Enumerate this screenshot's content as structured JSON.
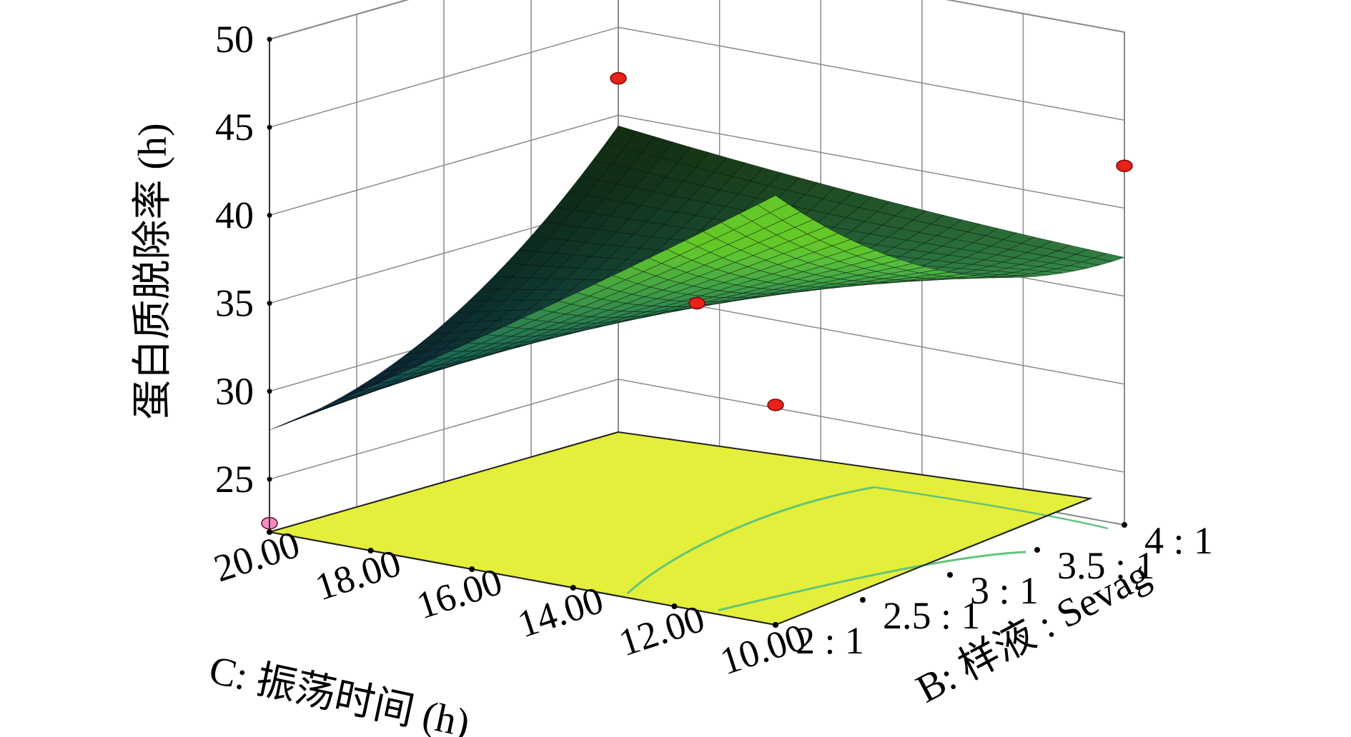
{
  "chart_data": {
    "type": "surface3d",
    "z_axis": {
      "label": "蛋白质脱除率 (h)",
      "ticks": [
        25,
        30,
        35,
        40,
        45,
        50
      ],
      "range": [
        22,
        50
      ]
    },
    "x_axis": {
      "label": "C: 振荡时间 (h)",
      "ticks": [
        "20.00",
        "18.00",
        "16.00",
        "14.00",
        "12.00",
        "10.00"
      ],
      "range": [
        20,
        10
      ]
    },
    "y_axis": {
      "label": "B: 样液 : Sevag",
      "ticks": [
        "2 : 1",
        "2.5 : 1",
        "3 : 1",
        "3.5 : 1",
        "4 : 1"
      ],
      "range": [
        2,
        4
      ]
    },
    "design_points": [
      {
        "C": 20,
        "B": 4,
        "value": 42.1,
        "color": "#e8211a"
      },
      {
        "C": 10,
        "B": 4,
        "value": 42.4,
        "color": "#e8211a"
      },
      {
        "C": 15,
        "B": 3,
        "value": 34.8,
        "color": "#e8211a"
      },
      {
        "C": 10,
        "B": 2,
        "value": 34.5,
        "color": "#e8211a"
      },
      {
        "C": 20,
        "B": 2,
        "value": 22.5,
        "color": "#f08cc8"
      }
    ],
    "colors": {
      "floor": "#e3ef3a",
      "contour": "#62c47a",
      "high": "#1b8a2a",
      "low": "#1f1fd0",
      "grid": "#8a8a8a",
      "point": "#e8211a"
    }
  }
}
